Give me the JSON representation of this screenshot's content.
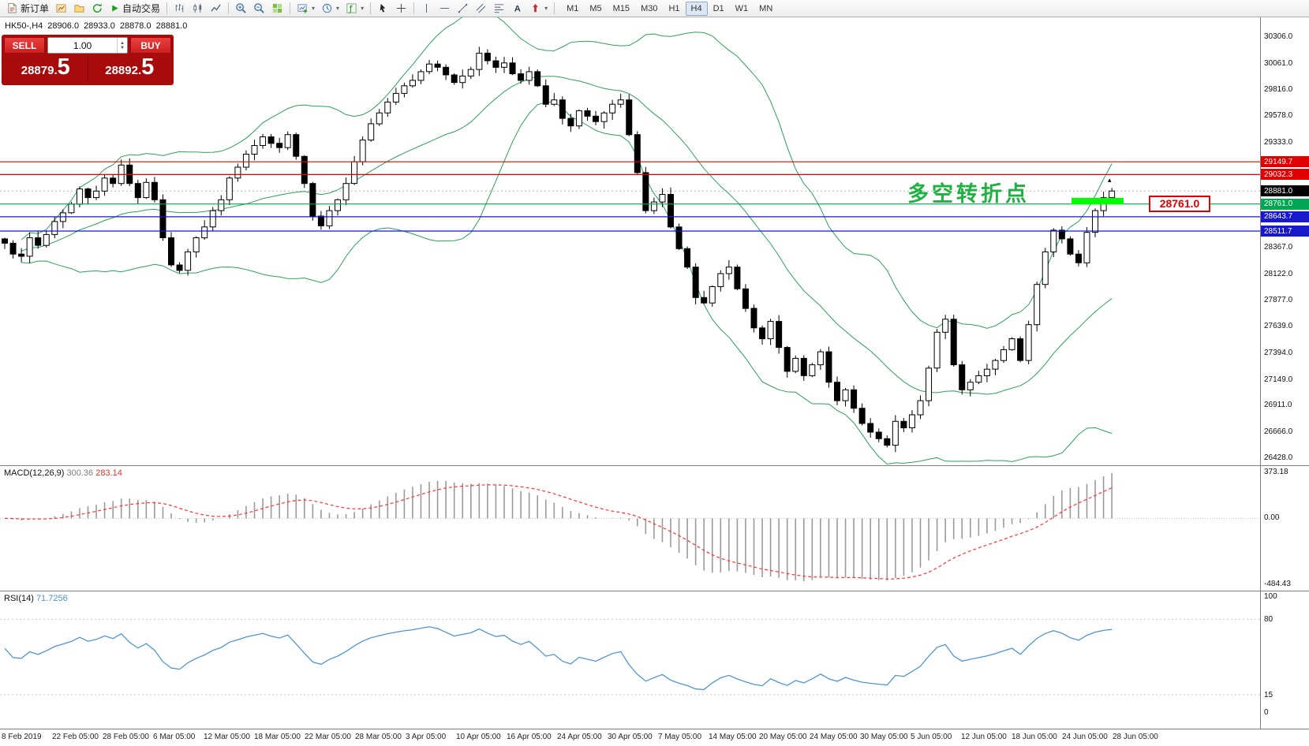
{
  "toolbar": {
    "new_order_label": "新订单",
    "auto_trading_label": "自动交易",
    "timeframes": [
      "M1",
      "M5",
      "M15",
      "M30",
      "H1",
      "H4",
      "D1",
      "W1",
      "MN"
    ],
    "active_timeframe": "H4",
    "icon_names": [
      "new-order-icon",
      "chart-window-icon",
      "profiles-folder-icon",
      "refresh-icon",
      "autotrading-play-icon",
      "bar-chart-icon",
      "candlestick-icon",
      "line-chart-icon",
      "zoom-in-icon",
      "zoom-out-icon",
      "tile-windows-icon",
      "new-chart-icon",
      "periods-clock-icon",
      "indicators-icon",
      "cursor-icon",
      "crosshair-icon",
      "vertical-line-icon",
      "horizontal-line-icon",
      "trendline-icon",
      "channel-icon",
      "fibonacci-icon",
      "text-tool-icon",
      "arrows-tool-icon"
    ]
  },
  "chart_header": {
    "symbol_period": "HK50-,H4",
    "open": "28906.0",
    "high": "28933.0",
    "low": "28878.0",
    "close": "28881.0"
  },
  "trade_panel": {
    "sell_label": "SELL",
    "buy_label": "BUY",
    "volume": "1.00",
    "sell_price_main": "28879.",
    "sell_price_big": "5",
    "buy_price_main": "28892.",
    "buy_price_big": "5"
  },
  "annotation": {
    "text": "多空转折点",
    "color": "#1fb141"
  },
  "callout": {
    "text": "28761.0"
  },
  "macd_panel": {
    "name": "MACD(12,26,9)",
    "value_main": "300.36",
    "value_signal": "283.14",
    "axis_max": "373.18",
    "axis_zero": "0.00",
    "axis_min": "-484.43"
  },
  "rsi_panel": {
    "name": "RSI(14)",
    "value": "71.7256",
    "axis_top": "100",
    "axis_high": "80",
    "axis_low": "15",
    "axis_bottom": "0",
    "level_high": 80,
    "level_low": 15
  },
  "time_axis": [
    "8 Feb 2019",
    "22 Feb 05:00",
    "28 Feb 05:00",
    "6 Mar 05:00",
    "12 Mar 05:00",
    "18 Mar 05:00",
    "22 Mar 05:00",
    "28 Mar 05:00",
    "3 Apr 05:00",
    "10 Apr 05:00",
    "16 Apr 05:00",
    "24 Apr 05:00",
    "30 Apr 05:00",
    "7 May 05:00",
    "14 May 05:00",
    "20 May 05:00",
    "24 May 05:00",
    "30 May 05:00",
    "5 Jun 05:00",
    "12 Jun 05:00",
    "18 Jun 05:00",
    "24 Jun 05:00",
    "28 Jun 05:00"
  ],
  "colors": {
    "level_red": "#e00000",
    "level_green": "#00a651",
    "level_blue": "#1818cc",
    "current_black": "#000000",
    "highlight_green": "#00ff00",
    "annotation_green": "#1fb141",
    "panel_red": "#a80b0b",
    "bollinger_green": "#2ca05a",
    "macd_bar_gray": "#9a9a9a",
    "macd_signal_red": "#ff3434",
    "rsi_blue": "#4f94d4"
  },
  "chart_data": {
    "type": "candlestick",
    "symbol": "HK50",
    "timeframe": "H4",
    "last_bar_ohlc": [
      28906.0,
      28933.0,
      28878.0,
      28881.0
    ],
    "y_axis_ticks": [
      30306.0,
      30061.0,
      29816.0,
      29578.0,
      29333.0,
      28367.0,
      28122.0,
      27877.0,
      27639.0,
      27394.0,
      27149.0,
      26911.0,
      26666.0,
      26428.0
    ],
    "price_levels": [
      {
        "value": 29149.7,
        "kind": "resistance",
        "color": "#e00000"
      },
      {
        "value": 29032.3,
        "kind": "resistance",
        "color": "#e00000"
      },
      {
        "value": 28881.0,
        "kind": "current-price",
        "color": "#000000"
      },
      {
        "value": 28761.0,
        "kind": "pivot",
        "color": "#00a651"
      },
      {
        "value": 28643.7,
        "kind": "support",
        "color": "#1818cc"
      },
      {
        "value": 28511.7,
        "kind": "support",
        "color": "#1818cc"
      }
    ],
    "closes": [
      28400,
      28300,
      28280,
      28450,
      28380,
      28480,
      28600,
      28680,
      28760,
      28900,
      28820,
      28880,
      29000,
      28950,
      29120,
      28950,
      28820,
      28960,
      28800,
      28450,
      28200,
      28150,
      28320,
      28450,
      28550,
      28700,
      28800,
      29000,
      29100,
      29220,
      29300,
      29380,
      29320,
      29280,
      29400,
      29200,
      28950,
      28650,
      28560,
      28700,
      28800,
      28950,
      29150,
      29350,
      29500,
      29600,
      29700,
      29780,
      29850,
      29900,
      29980,
      30050,
      30020,
      29950,
      29880,
      29940,
      30000,
      30150,
      30080,
      30020,
      30060,
      29960,
      29900,
      29980,
      29850,
      29680,
      29720,
      29550,
      29480,
      29620,
      29570,
      29520,
      29600,
      29680,
      29720,
      29400,
      29050,
      28700,
      28780,
      28850,
      28550,
      28350,
      28180,
      27900,
      27850,
      28000,
      28120,
      28180,
      27980,
      27800,
      27620,
      27520,
      27680,
      27440,
      27220,
      27340,
      27180,
      27280,
      27400,
      27120,
      26950,
      27050,
      26880,
      26740,
      26660,
      26600,
      26540,
      26760,
      26700,
      26820,
      26950,
      27250,
      27580,
      27700,
      27280,
      27050,
      27120,
      27180,
      27240,
      27320,
      27420,
      27520,
      27320,
      27650,
      28020,
      28320,
      28520,
      28440,
      28300,
      28220,
      28500,
      28700,
      28820,
      28881
    ],
    "indicators": {
      "bollinger": {
        "period": 20,
        "deviation": 2
      },
      "macd": {
        "fast": 12,
        "slow": 26,
        "signal": 9
      },
      "rsi": {
        "period": 14
      }
    }
  }
}
